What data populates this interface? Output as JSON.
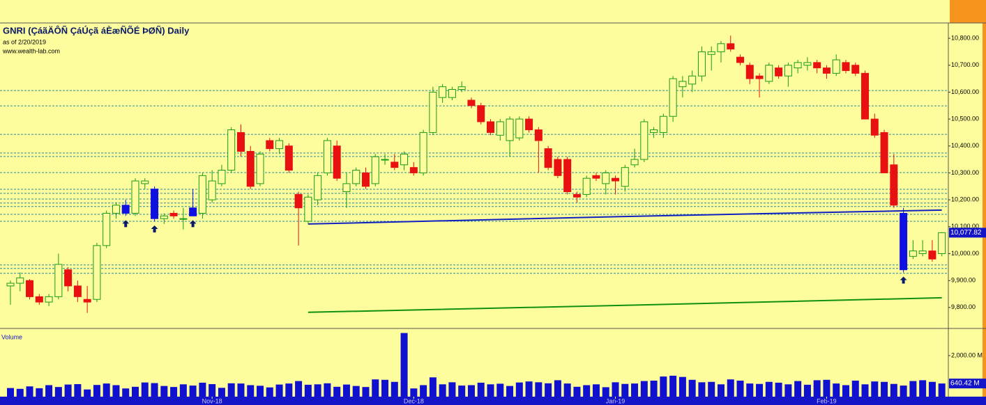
{
  "chart_data": [
    {
      "type": "candlestick",
      "title": "GNRI (ÇáãÄÔÑ ÇáÚçã áÈæÑÕÉ ÞØÑ) Daily",
      "subtitle": "as of 2/20/2019",
      "source": "www.wealth-lab.com",
      "candles": [
        [
          9880,
          9900,
          9810,
          9890
        ],
        [
          9890,
          9930,
          9860,
          9910
        ],
        [
          9900,
          9905,
          9830,
          9840
        ],
        [
          9840,
          9850,
          9810,
          9820
        ],
        [
          9820,
          9850,
          9805,
          9840
        ],
        [
          9840,
          10000,
          9830,
          9960
        ],
        [
          9940,
          9950,
          9860,
          9880
        ],
        [
          9880,
          9900,
          9820,
          9840
        ],
        [
          9830,
          9880,
          9780,
          9820
        ],
        [
          9830,
          10040,
          9820,
          10030
        ],
        [
          10030,
          10160,
          10020,
          10150
        ],
        [
          10150,
          10190,
          10130,
          10180
        ],
        [
          10180,
          10200,
          10140,
          10150
        ],
        [
          10150,
          10280,
          10140,
          10270
        ],
        [
          10260,
          10280,
          10240,
          10270
        ],
        [
          10240,
          10250,
          10120,
          10130
        ],
        [
          10130,
          10150,
          10110,
          10140
        ],
        [
          10150,
          10160,
          10130,
          10140
        ],
        [
          10130,
          10170,
          10090,
          10130
        ],
        [
          10170,
          10240,
          10140,
          10140
        ],
        [
          10150,
          10300,
          10130,
          10290
        ],
        [
          10200,
          10310,
          10190,
          10270
        ],
        [
          10260,
          10330,
          10250,
          10310
        ],
        [
          10310,
          10470,
          10300,
          10460
        ],
        [
          10450,
          10480,
          10360,
          10380
        ],
        [
          10380,
          10400,
          10240,
          10250
        ],
        [
          10260,
          10380,
          10250,
          10370
        ],
        [
          10420,
          10430,
          10380,
          10390
        ],
        [
          10390,
          10430,
          10370,
          10420
        ],
        [
          10400,
          10410,
          10300,
          10310
        ],
        [
          10220,
          10230,
          10030,
          10170
        ],
        [
          10120,
          10220,
          10110,
          10210
        ],
        [
          10200,
          10300,
          10180,
          10290
        ],
        [
          10300,
          10430,
          10290,
          10420
        ],
        [
          10400,
          10420,
          10270,
          10280
        ],
        [
          10230,
          10300,
          10170,
          10260
        ],
        [
          10260,
          10320,
          10250,
          10310
        ],
        [
          10300,
          10320,
          10240,
          10250
        ],
        [
          10260,
          10370,
          10250,
          10360
        ],
        [
          10350,
          10370,
          10330,
          10350
        ],
        [
          10340,
          10370,
          10310,
          10320
        ],
        [
          10330,
          10380,
          10310,
          10370
        ],
        [
          10320,
          10340,
          10290,
          10300
        ],
        [
          10300,
          10460,
          10290,
          10450
        ],
        [
          10450,
          10620,
          10440,
          10600
        ],
        [
          10580,
          10630,
          10560,
          10620
        ],
        [
          10580,
          10620,
          10570,
          10610
        ],
        [
          10610,
          10640,
          10600,
          10620
        ],
        [
          10570,
          10580,
          10540,
          10550
        ],
        [
          10550,
          10560,
          10480,
          10490
        ],
        [
          10490,
          10500,
          10440,
          10450
        ],
        [
          10440,
          10500,
          10420,
          10490
        ],
        [
          10420,
          10510,
          10360,
          10500
        ],
        [
          10430,
          10510,
          10420,
          10500
        ],
        [
          10500,
          10510,
          10450,
          10460
        ],
        [
          10460,
          10470,
          10300,
          10420
        ],
        [
          10390,
          10400,
          10310,
          10320
        ],
        [
          10350,
          10360,
          10280,
          10290
        ],
        [
          10350,
          10360,
          10220,
          10230
        ],
        [
          10220,
          10230,
          10190,
          10210
        ],
        [
          10220,
          10290,
          10210,
          10280
        ],
        [
          10290,
          10300,
          10270,
          10280
        ],
        [
          10260,
          10310,
          10220,
          10300
        ],
        [
          10280,
          10290,
          10220,
          10270
        ],
        [
          10250,
          10330,
          10230,
          10320
        ],
        [
          10330,
          10390,
          10320,
          10350
        ],
        [
          10350,
          10500,
          10340,
          10490
        ],
        [
          10450,
          10470,
          10430,
          10460
        ],
        [
          10450,
          10520,
          10430,
          10510
        ],
        [
          10510,
          10660,
          10490,
          10650
        ],
        [
          10620,
          10660,
          10580,
          10640
        ],
        [
          10630,
          10680,
          10600,
          10660
        ],
        [
          10660,
          10770,
          10640,
          10750
        ],
        [
          10740,
          10770,
          10680,
          10750
        ],
        [
          10750,
          10790,
          10710,
          10780
        ],
        [
          10780,
          10810,
          10750,
          10760
        ],
        [
          10730,
          10740,
          10700,
          10710
        ],
        [
          10700,
          10710,
          10630,
          10650
        ],
        [
          10660,
          10670,
          10580,
          10650
        ],
        [
          10640,
          10710,
          10630,
          10700
        ],
        [
          10690,
          10700,
          10650,
          10660
        ],
        [
          10660,
          10710,
          10620,
          10700
        ],
        [
          10690,
          10720,
          10670,
          10710
        ],
        [
          10700,
          10730,
          10680,
          10710
        ],
        [
          10710,
          10720,
          10670,
          10690
        ],
        [
          10690,
          10700,
          10650,
          10670
        ],
        [
          10670,
          10740,
          10660,
          10720
        ],
        [
          10710,
          10720,
          10670,
          10680
        ],
        [
          10700,
          10710,
          10660,
          10670
        ],
        [
          10670,
          10680,
          10500,
          10500
        ],
        [
          10500,
          10520,
          10430,
          10440
        ],
        [
          10450,
          10460,
          10300,
          10300
        ],
        [
          10330,
          10370,
          10170,
          10180
        ],
        [
          10150,
          10170,
          9930,
          9940
        ],
        [
          9990,
          10050,
          9980,
          10010
        ],
        [
          10000,
          10050,
          9990,
          10010
        ],
        [
          10010,
          10050,
          9970,
          9980
        ],
        [
          10000,
          10080,
          9990,
          10077.82
        ]
      ],
      "up_color": "#1a9a1a",
      "down_color": "#e81010",
      "signal_color": "#1010e0",
      "signal_bars": [
        12,
        15,
        19,
        93
      ],
      "lines": [
        {
          "color": "#1020c0",
          "x": [
            31,
            64,
            97
          ],
          "values": [
            10110,
            10138,
            10162
          ]
        },
        {
          "color": "#109010",
          "x": [
            31,
            64,
            97
          ],
          "values": [
            9782,
            9808,
            9836
          ]
        }
      ],
      "levels": [
        10606,
        10549,
        10443,
        10374,
        10361,
        10301,
        10239,
        10224,
        10203,
        10188,
        10175,
        10146,
        10120,
        9958,
        9945,
        9927
      ],
      "level_color": "#2a8a9a",
      "ylim": [
        9722,
        10857
      ],
      "yticks": [
        {
          "value": 10800,
          "label": "10,800.00"
        },
        {
          "value": 10700,
          "label": "10,700.00"
        },
        {
          "value": 10600,
          "label": "10,600.00"
        },
        {
          "value": 10500,
          "label": "10,500.00"
        },
        {
          "value": 10400,
          "label": "10,400.00"
        },
        {
          "value": 10300,
          "label": "10,300.00"
        },
        {
          "value": 10200,
          "label": "10,200.00"
        },
        {
          "value": 10100,
          "label": "10,100.00"
        },
        {
          "value": 10000,
          "label": "10,000.00"
        },
        {
          "value": 9900,
          "label": "9,900.00"
        },
        {
          "value": 9800,
          "label": "9,800.00"
        }
      ],
      "last_price": {
        "value": 10077.82,
        "label": "10,077.82"
      }
    },
    {
      "type": "bar",
      "title": "Volume",
      "color": "#1010d0",
      "values": [
        420,
        380,
        500,
        410,
        560,
        470,
        590,
        610,
        350,
        570,
        640,
        560,
        400,
        480,
        690,
        660,
        520,
        470,
        600,
        540,
        680,
        610,
        430,
        650,
        640,
        560,
        530,
        450,
        590,
        640,
        760,
        580,
        600,
        650,
        480,
        590,
        520,
        470,
        840,
        820,
        720,
        3100,
        400,
        560,
        940,
        600,
        700,
        540,
        560,
        680,
        600,
        630,
        520,
        690,
        740,
        700,
        650,
        800,
        640,
        480,
        560,
        600,
        460,
        700,
        620,
        640,
        760,
        780,
        980,
        1020,
        960,
        820,
        700,
        720,
        600,
        840,
        780,
        640,
        620,
        720,
        680,
        600,
        760,
        580,
        800,
        820,
        640,
        560,
        780,
        600,
        740,
        720,
        620,
        540,
        760,
        800,
        720,
        640.42
      ],
      "ylim": [
        0,
        3322
      ],
      "yticks": [
        {
          "value": 2000,
          "label": "2,000.00 M"
        }
      ],
      "last_value": {
        "value": 640.42,
        "label": "640.42 M"
      },
      "xticks": [
        {
          "value": 21,
          "label": "Nov-18"
        },
        {
          "value": 42,
          "label": "Dec-18"
        },
        {
          "value": 63,
          "label": "Jan-19"
        },
        {
          "value": 85,
          "label": "Feb-19"
        }
      ]
    }
  ]
}
